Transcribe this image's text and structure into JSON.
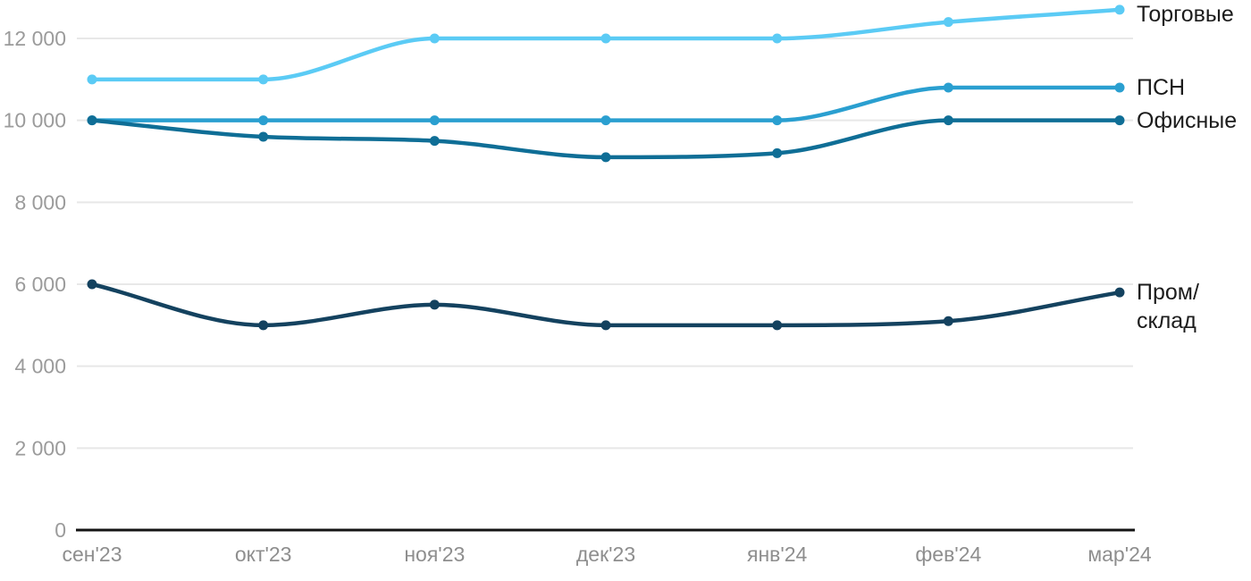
{
  "chart_data": {
    "type": "line",
    "title": "",
    "xlabel": "",
    "ylabel": "",
    "categories": [
      "сен'23",
      "окт'23",
      "ноя'23",
      "дек'23",
      "янв'24",
      "фев'24",
      "мар'24"
    ],
    "series": [
      {
        "name": "Торговые",
        "label_display": "Торговые",
        "color": "#5bcbf5",
        "values": [
          11000,
          11000,
          12000,
          12000,
          12000,
          12400,
          12700
        ]
      },
      {
        "name": "ПСН",
        "label_display": "ПСН",
        "color": "#2a9fd0",
        "values": [
          10000,
          10000,
          10000,
          10000,
          10000,
          10800,
          10800
        ]
      },
      {
        "name": "Офисные",
        "label_display": "Офисные",
        "color": "#0f6e96",
        "values": [
          10000,
          9600,
          9500,
          9100,
          9200,
          10000,
          10000
        ]
      },
      {
        "name": "Пром/склад",
        "label_display": "Пром/\nсклад",
        "color": "#14425f",
        "values": [
          6000,
          5000,
          5500,
          5000,
          5000,
          5100,
          5800
        ]
      }
    ],
    "yticks": [
      0,
      2000,
      4000,
      6000,
      8000,
      10000,
      12000
    ],
    "ytick_labels": [
      "0",
      "2 000",
      "4 000",
      "6 000",
      "8 000",
      "10 000",
      "12 000"
    ],
    "ylim": [
      0,
      12700
    ],
    "grid": "horizontal",
    "legend_position": "right-of-line-ends",
    "colors": {
      "grid_line": "#e8e8e8",
      "axis_line": "#141414",
      "ytick_text": "#9b9b9b",
      "xtick_text": "#8e8e8e",
      "legend_text": "#1c1c1c",
      "background": "#ffffff"
    }
  }
}
